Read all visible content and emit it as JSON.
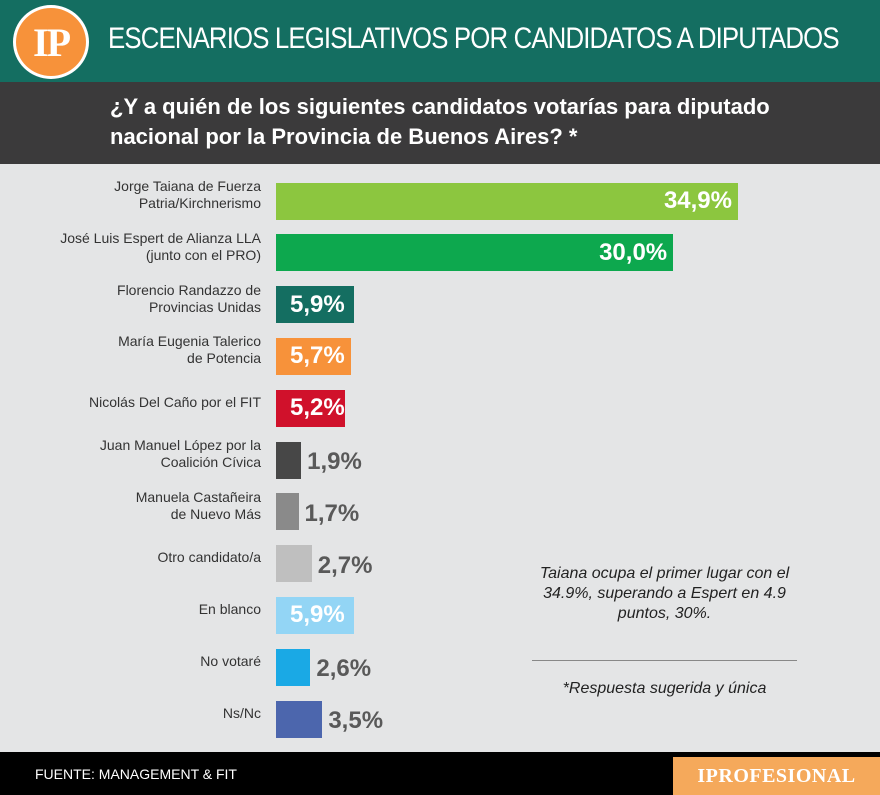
{
  "header": {
    "logo_text": "IP",
    "title": "ESCENARIOS LEGISLATIVOS POR CANDIDATOS A DIPUTADOS"
  },
  "question": "¿Y a quién de los siguientes candidatos votarías para diputado nacional por la Provincia de Buenos Aires? *",
  "chart_data": {
    "type": "bar",
    "orientation": "horizontal",
    "categories": [
      "Jorge Taiana de Fuerza Patria/Kirchnerismo",
      "José Luis Espert de Alianza LLA (junto con el PRO)",
      "Florencio Randazzo de Provincias Unidas",
      "María Eugenia Talerico de Potencia",
      "Nicolás Del Caño por el FIT",
      "Juan Manuel López por la Coalición Cívica",
      "Manuela Castañeira de Nuevo Más",
      "Otro candidato/a",
      "En blanco",
      "No votaré",
      "Ns/Nc"
    ],
    "label_lines": [
      [
        "Jorge Taiana de Fuerza",
        "Patria/Kirchnerismo"
      ],
      [
        "José Luis Espert de Alianza LLA",
        "(junto con el PRO)"
      ],
      [
        "Florencio Randazzo de",
        "Provincias Unidas"
      ],
      [
        "María Eugenia Talerico",
        "de Potencia"
      ],
      [
        "Nicolás Del Caño por el FIT"
      ],
      [
        "Juan Manuel López por la",
        "Coalición Cívica"
      ],
      [
        "Manuela Castañeira",
        "de Nuevo Más"
      ],
      [
        "Otro candidato/a"
      ],
      [
        "En blanco"
      ],
      [
        "No votaré"
      ],
      [
        "Ns/Nc"
      ]
    ],
    "values": [
      34.9,
      30.0,
      5.9,
      5.7,
      5.2,
      1.9,
      1.7,
      2.7,
      5.9,
      2.6,
      3.5
    ],
    "value_labels": [
      "34,9%",
      "30,0%",
      "5,9%",
      "5,7%",
      "5,2%",
      "1,9%",
      "1,7%",
      "2,7%",
      "5,9%",
      "2,6%",
      "3,5%"
    ],
    "colors": [
      "#8cc63f",
      "#0da84e",
      "#146e61",
      "#f7923a",
      "#d0112b",
      "#474747",
      "#8a8a8a",
      "#bfbfbf",
      "#93d5f5",
      "#1aa9e5",
      "#4c66ad"
    ],
    "label_inside": [
      true,
      true,
      true,
      true,
      true,
      false,
      false,
      false,
      true,
      false,
      false
    ],
    "xlim": [
      0,
      35
    ]
  },
  "note": "Taiana ocupa el primer lugar con el 34.9%, superando a Espert en 4.9 puntos, 30%.",
  "footnote": "*Respuesta sugerida y única",
  "footer": {
    "source": "FUENTE: MANAGEMENT & FIT",
    "brand": "IPROFESIONAL"
  }
}
